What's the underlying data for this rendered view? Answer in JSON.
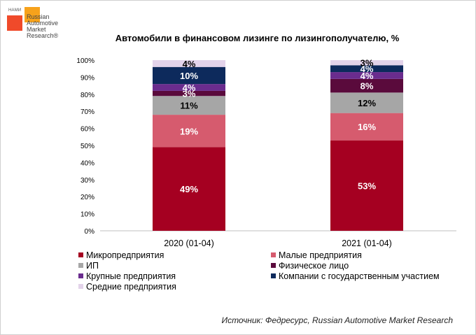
{
  "logo": {
    "nami": "НАМИ",
    "brand_lines": [
      "Russian",
      "Automotive",
      "Market",
      "Research®"
    ]
  },
  "chart_data": {
    "type": "bar",
    "stacked": true,
    "title": "Автомобили в финансовом лизинге по лизингополучателю, %",
    "categories": [
      "2020 (01-04)",
      "2021 (01-04)"
    ],
    "ylim": [
      0,
      100
    ],
    "yticks": [
      "0%",
      "10%",
      "20%",
      "30%",
      "40%",
      "50%",
      "60%",
      "70%",
      "80%",
      "90%",
      "100%"
    ],
    "grid": false,
    "legend_position": "bottom",
    "series": [
      {
        "name": "Микропредприятия",
        "color": "#a50021",
        "values": [
          49,
          53
        ],
        "labels": [
          "49%",
          "53%"
        ]
      },
      {
        "name": "Малые предприятия",
        "color": "#d65b6e",
        "values": [
          19,
          16
        ],
        "labels": [
          "19%",
          "16%"
        ]
      },
      {
        "name": "ИП",
        "color": "#a6a6a6",
        "values": [
          11,
          12
        ],
        "labels": [
          "11%",
          "12%"
        ]
      },
      {
        "name": "Физическое лицо",
        "color": "#5a0a3c",
        "values": [
          3,
          8
        ],
        "labels": [
          "3%",
          "8%"
        ]
      },
      {
        "name": "Крупные предприятия",
        "color": "#6a2c8e",
        "values": [
          4,
          4
        ],
        "labels": [
          "4%",
          "4%"
        ]
      },
      {
        "name": "Компании с государственным участием",
        "color": "#0d2a5c",
        "values": [
          10,
          4
        ],
        "labels": [
          "10%",
          "4%"
        ]
      },
      {
        "name": "Средние предприятия",
        "color": "#e3d3ea",
        "values": [
          4,
          3
        ],
        "labels": [
          "4%",
          "3%"
        ]
      }
    ]
  },
  "source": "Источник: Федресурс, Russian Automotive Market Research"
}
